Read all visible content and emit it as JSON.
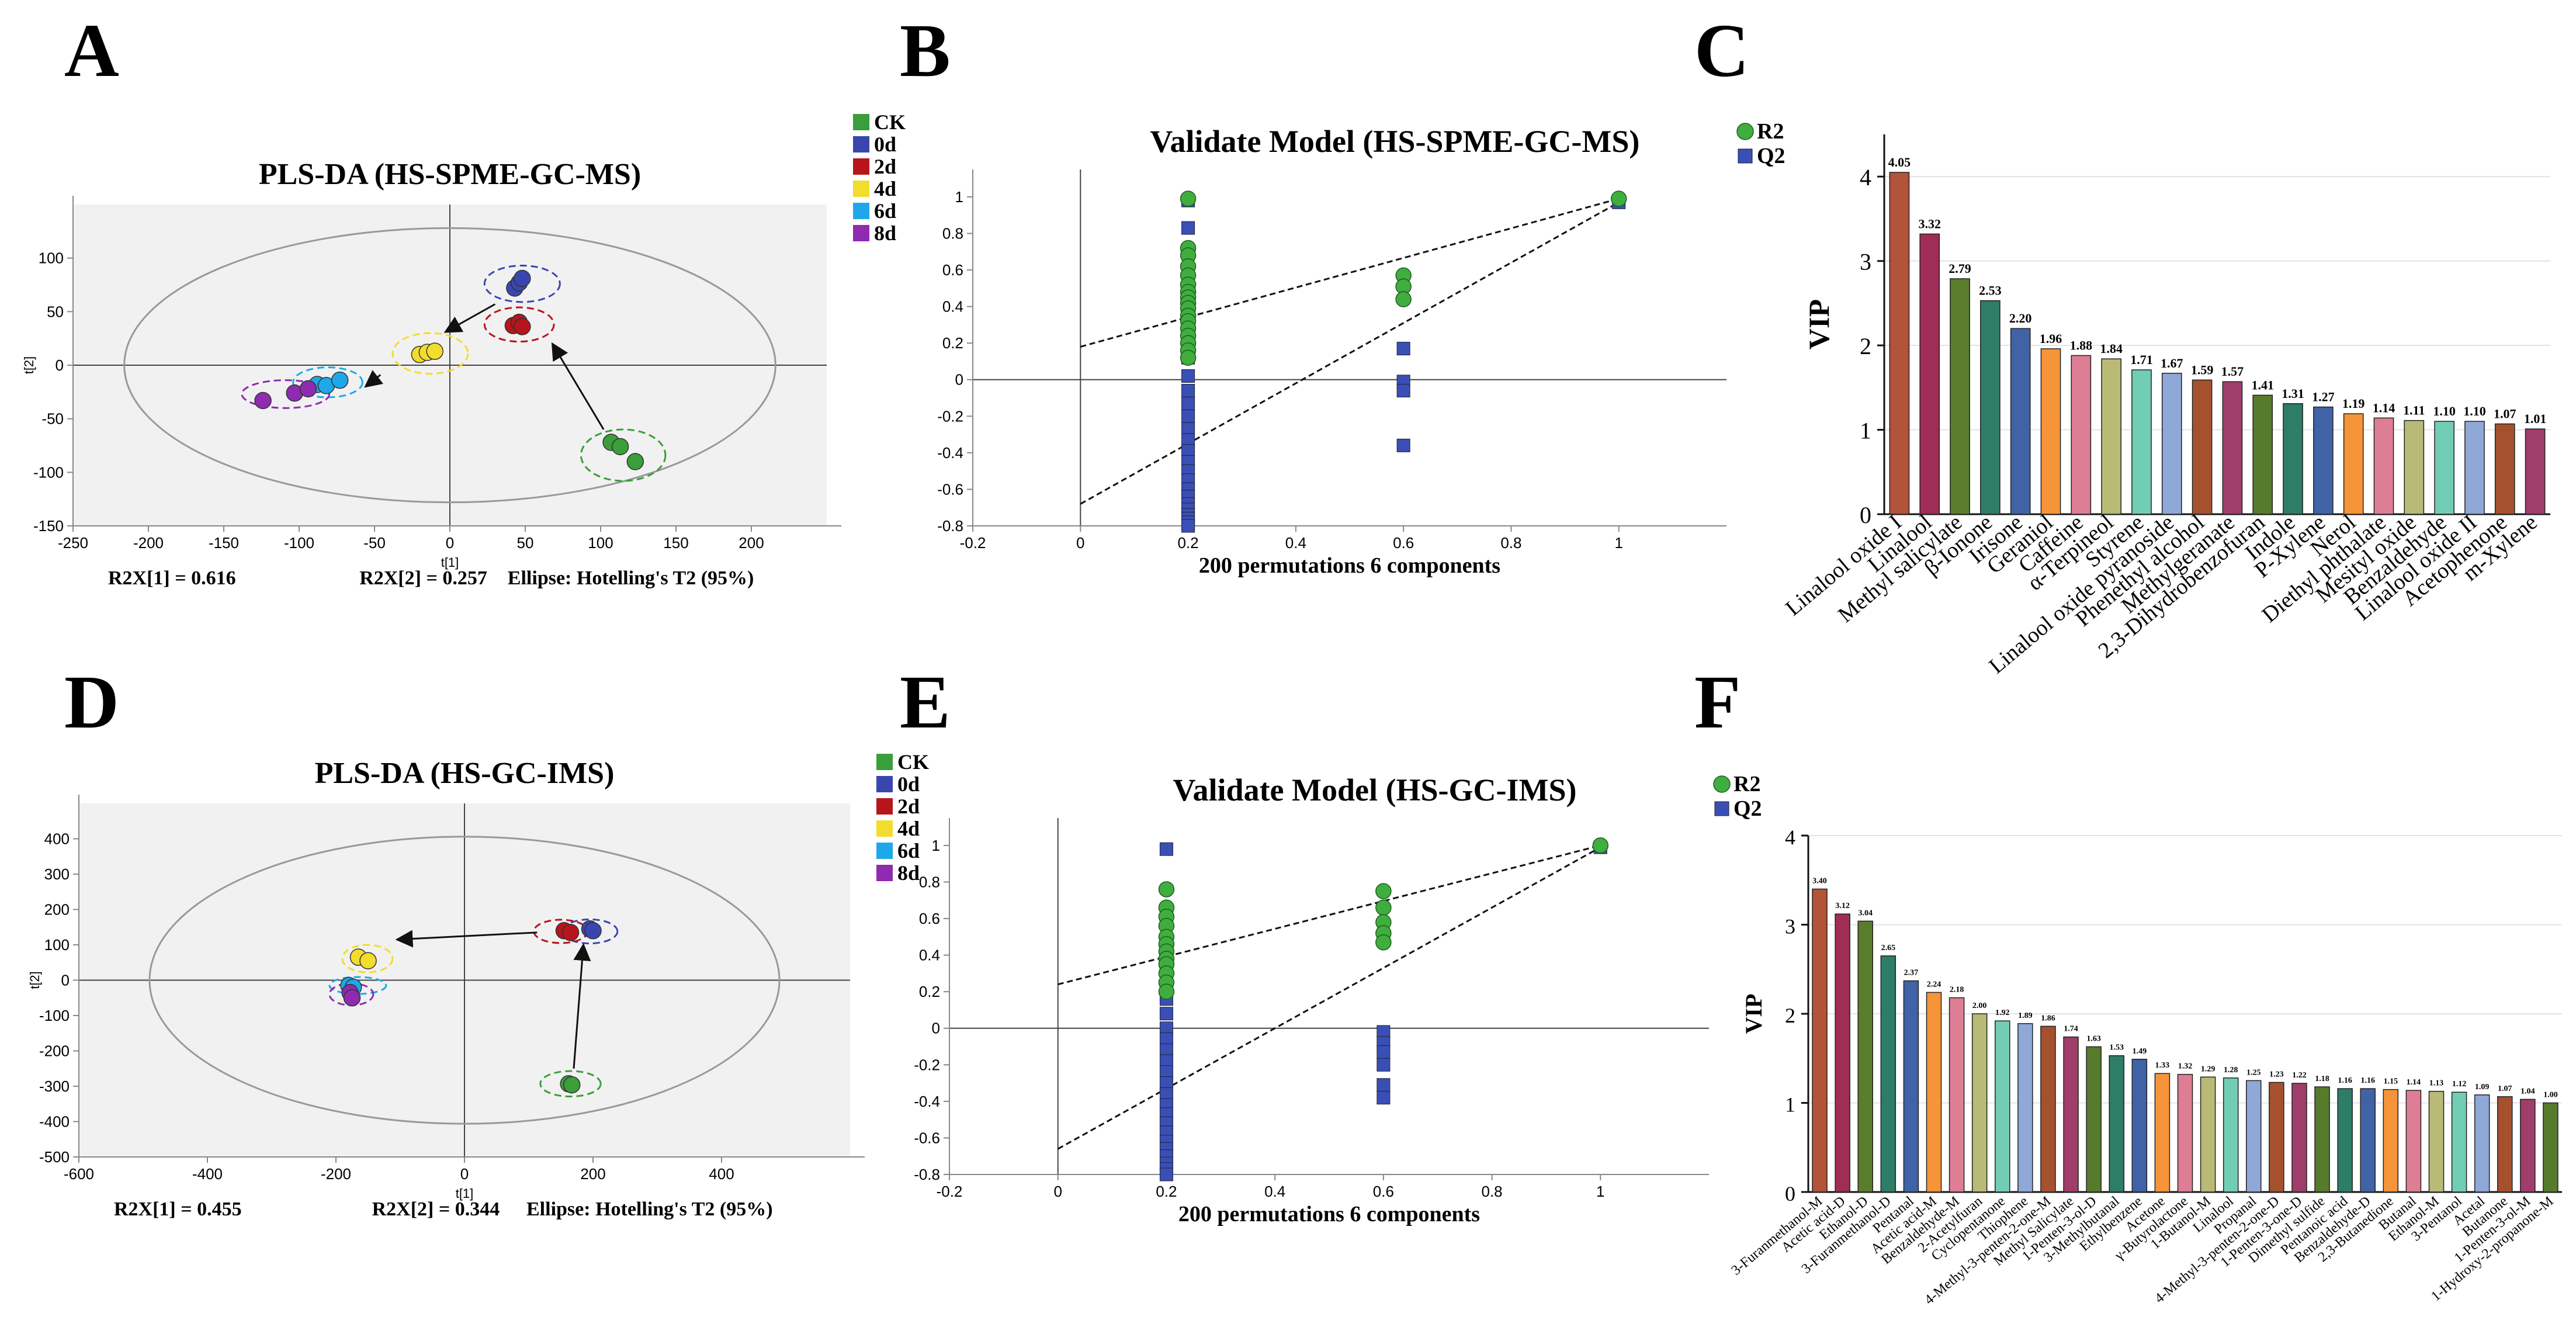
{
  "panel_letters": [
    "A",
    "B",
    "C",
    "D",
    "E",
    "F"
  ],
  "colors": {
    "CK": "#3a9e3a",
    "0d": "#3a46b0",
    "2d": "#b8141c",
    "4d": "#f2dc2c",
    "6d": "#1ea8ea",
    "8d": "#8e2bb0",
    "r2": "#3fae3f",
    "q2": "#3a4fb5",
    "grid_bg": "#f1f1f1",
    "axis": "#888888"
  },
  "chart_data": [
    {
      "id": "A",
      "type": "scatter",
      "title": "PLS-DA (HS-SPME-GC-MS)",
      "xlabel": "t[1]",
      "ylabel": "t[2]",
      "xlim": [
        -250,
        250
      ],
      "ylim": [
        -150,
        150
      ],
      "xticks": [
        -250,
        -200,
        -150,
        -100,
        -50,
        0,
        50,
        100,
        150,
        200
      ],
      "yticks": [
        -150,
        -100,
        -50,
        0,
        50,
        100
      ],
      "legend": [
        "CK",
        "0d",
        "2d",
        "4d",
        "6d",
        "8d"
      ],
      "series": [
        {
          "name": "CK",
          "points": [
            [
              107,
              -72
            ],
            [
              113,
              -76
            ],
            [
              123,
              -90
            ]
          ]
        },
        {
          "name": "0d",
          "points": [
            [
              43,
              72
            ],
            [
              46,
              77
            ],
            [
              48,
              81
            ]
          ]
        },
        {
          "name": "2d",
          "points": [
            [
              42,
              37
            ],
            [
              46,
              40
            ],
            [
              48,
              36
            ]
          ]
        },
        {
          "name": "4d",
          "points": [
            [
              -20,
              10
            ],
            [
              -15,
              12
            ],
            [
              -10,
              13
            ]
          ]
        },
        {
          "name": "6d",
          "points": [
            [
              -88,
              -18
            ],
            [
              -82,
              -19
            ],
            [
              -73,
              -14
            ]
          ]
        },
        {
          "name": "8d",
          "points": [
            [
              -124,
              -33
            ],
            [
              -103,
              -26
            ],
            [
              -94,
              -22
            ]
          ]
        }
      ],
      "ellipses": [
        {
          "cx": 115,
          "cy": -84,
          "rx": 28,
          "ry": 24,
          "group": "CK"
        },
        {
          "cx": 48,
          "cy": 76,
          "rx": 25,
          "ry": 17,
          "group": "0d"
        },
        {
          "cx": 46,
          "cy": 38,
          "rx": 23,
          "ry": 16,
          "group": "2d"
        },
        {
          "cx": -13,
          "cy": 11,
          "rx": 25,
          "ry": 19,
          "group": "4d"
        },
        {
          "cx": -81,
          "cy": -16,
          "rx": 23,
          "ry": 14,
          "group": "6d"
        },
        {
          "cx": -109,
          "cy": -27,
          "rx": 29,
          "ry": 13,
          "group": "8d"
        }
      ],
      "arrows": [
        [
          [
            102,
            -60
          ],
          [
            68,
            20
          ]
        ],
        [
          [
            30,
            57
          ],
          [
            -3,
            31
          ]
        ],
        [
          [
            -46,
            -9
          ],
          [
            -56,
            -20
          ]
        ]
      ],
      "hotelling": {
        "rx": 216,
        "ry": 128
      },
      "annotations": [
        "R2X[1] = 0.616",
        "R2X[2] = 0.257",
        "Ellipse: Hotelling's T2 (95%)"
      ]
    },
    {
      "id": "B",
      "type": "scatter",
      "title": "Validate Model (HS-SPME-GC-MS)",
      "xlabel": "200 permutations 6 components",
      "xlim": [
        -0.2,
        1.2
      ],
      "ylim": [
        -0.8,
        1.15
      ],
      "xticks": [
        -0.2,
        0,
        0.2,
        0.4,
        0.6,
        0.8,
        1
      ],
      "yticks": [
        -0.8,
        -0.6,
        -0.4,
        -0.2,
        0,
        0.2,
        0.4,
        0.6,
        0.8,
        1
      ],
      "legend": [
        "R2",
        "Q2"
      ],
      "series": [
        {
          "name": "R2",
          "x": [
            0.2,
            0.2,
            0.2,
            0.2,
            0.2,
            0.2,
            0.2,
            0.2,
            0.2,
            0.2,
            0.2,
            0.2,
            0.2,
            0.2,
            0.2,
            0.2,
            0.2,
            0.6,
            0.6,
            0.6,
            1.0
          ],
          "y": [
            0.99,
            0.72,
            0.68,
            0.62,
            0.57,
            0.52,
            0.48,
            0.45,
            0.42,
            0.39,
            0.35,
            0.32,
            0.28,
            0.24,
            0.2,
            0.16,
            0.12,
            0.57,
            0.51,
            0.44,
            0.99
          ]
        },
        {
          "name": "Q2",
          "x": [
            0.2,
            0.2,
            0.2,
            0.2,
            0.2,
            0.2,
            0.2,
            0.2,
            0.2,
            0.2,
            0.2,
            0.2,
            0.2,
            0.2,
            0.2,
            0.2,
            0.2,
            0.2,
            0.2,
            0.2,
            0.2,
            0.2,
            0.2,
            0.2,
            0.6,
            0.6,
            0.6,
            0.6,
            1.0
          ],
          "y": [
            0.98,
            0.83,
            0.69,
            0.38,
            0.22,
            0.12,
            0.02,
            -0.06,
            -0.13,
            -0.2,
            -0.27,
            -0.33,
            -0.39,
            -0.45,
            -0.5,
            -0.55,
            -0.6,
            -0.64,
            -0.68,
            -0.71,
            -0.74,
            -0.76,
            -0.78,
            -0.8,
            0.17,
            -0.01,
            -0.06,
            -0.36,
            0.97
          ]
        }
      ],
      "regression_lines": [
        {
          "name": "R2",
          "points": [
            [
              0,
              0.18
            ],
            [
              1,
              0.99
            ]
          ]
        },
        {
          "name": "Q2",
          "points": [
            [
              0,
              -0.68
            ],
            [
              1,
              0.97
            ]
          ]
        }
      ]
    },
    {
      "id": "C",
      "type": "bar",
      "ylabel": "VIP",
      "ylim": [
        0,
        4.5
      ],
      "yticks": [
        0,
        1,
        2,
        3,
        4
      ],
      "categories": [
        "Linalool oxide I",
        "Linalool",
        "Methyl salicylate",
        "β-Ionone",
        "Irisone",
        "Geraniol",
        "Caffeine",
        "α-Terpineol",
        "Styrene",
        "Linalool oxide pyranoside",
        "Phenethyl alcohol",
        "Methylgeranate",
        "2,3-Dihydrobenzofuran",
        "Indole",
        "P-Xylene",
        "Nerol",
        "Diethyl phthalate",
        "Mesityl oxide",
        "Benzaldehyde",
        "Linalool oxide II",
        "Acetophenone",
        "m-Xylene"
      ],
      "values": [
        4.05,
        3.32,
        2.79,
        2.53,
        2.2,
        1.96,
        1.88,
        1.84,
        1.71,
        1.67,
        1.59,
        1.57,
        1.41,
        1.31,
        1.27,
        1.19,
        1.14,
        1.11,
        1.1,
        1.1,
        1.07,
        1.01
      ],
      "labels": [
        "4.05",
        "3.32",
        "2.79",
        "2.53",
        "2.20",
        "1.96",
        "1.88",
        "1.84",
        "1.71",
        "1.67",
        "1.59",
        "1.57",
        "1.41",
        "1.31",
        "1.27",
        "1.19",
        "1.14",
        "1.11",
        "1.10",
        "1.10",
        "1.07",
        "1.01"
      ],
      "bar_colors": [
        "#b2533a",
        "#9f2d55",
        "#5a7d2c",
        "#2e7d66",
        "#3f63a6",
        "#f59438",
        "#de7e95",
        "#b8ba76",
        "#72cdb5",
        "#8fa8d8",
        "#a6512e",
        "#9f3e6a",
        "#567b2d",
        "#2e7d66",
        "#3f63a6",
        "#f59438",
        "#de7e95",
        "#b8ba76",
        "#72cdb5",
        "#8fa8d8",
        "#a6512e",
        "#9f3e6a"
      ]
    },
    {
      "id": "D",
      "type": "scatter",
      "title": "PLS-DA (HS-GC-IMS)",
      "xlabel": "t[1]",
      "ylabel": "t[2]",
      "xlim": [
        -600,
        600
      ],
      "ylim": [
        -500,
        500
      ],
      "xticks": [
        -600,
        -400,
        -200,
        0,
        200,
        400
      ],
      "yticks": [
        -500,
        -400,
        -300,
        -200,
        -100,
        0,
        100,
        200,
        300,
        400
      ],
      "legend": [
        "CK",
        "0d",
        "2d",
        "4d",
        "6d",
        "8d"
      ],
      "series": [
        {
          "name": "CK",
          "points": [
            [
              162,
              -293
            ],
            [
              167,
              -296
            ]
          ]
        },
        {
          "name": "0d",
          "points": [
            [
              195,
              145
            ],
            [
              200,
              140
            ]
          ]
        },
        {
          "name": "2d",
          "points": [
            [
              155,
              140
            ],
            [
              165,
              135
            ]
          ]
        },
        {
          "name": "4d",
          "points": [
            [
              -165,
              65
            ],
            [
              -150,
              55
            ]
          ]
        },
        {
          "name": "6d",
          "points": [
            [
              -180,
              -15
            ],
            [
              -173,
              -20
            ]
          ]
        },
        {
          "name": "8d",
          "points": [
            [
              -178,
              -35
            ],
            [
              -175,
              -50
            ]
          ]
        }
      ],
      "ellipses": [
        {
          "cx": 165,
          "cy": -293,
          "rx": 47,
          "ry": 36,
          "group": "CK"
        },
        {
          "cx": 195,
          "cy": 138,
          "rx": 43,
          "ry": 34,
          "group": "0d"
        },
        {
          "cx": 150,
          "cy": 138,
          "rx": 42,
          "ry": 33,
          "group": "2d"
        },
        {
          "cx": -151,
          "cy": 61,
          "rx": 39,
          "ry": 39,
          "group": "4d"
        },
        {
          "cx": -166,
          "cy": -15,
          "rx": 44,
          "ry": 24,
          "group": "6d"
        },
        {
          "cx": -176,
          "cy": -40,
          "rx": 34,
          "ry": 31,
          "group": "8d"
        }
      ],
      "arrows": [
        [
          [
            113,
            135
          ],
          [
            -105,
            115
          ]
        ],
        [
          [
            170,
            -250
          ],
          [
            185,
            100
          ]
        ]
      ],
      "hotelling": {
        "rx": 490,
        "ry": 406
      },
      "annotations": [
        "R2X[1] = 0.455",
        "R2X[2] = 0.344",
        "Ellipse: Hotelling's T2 (95%)"
      ]
    },
    {
      "id": "E",
      "type": "scatter",
      "title": "Validate Model (HS-GC-IMS)",
      "xlabel": "200 permutations 6 components",
      "xlim": [
        -0.2,
        1.2
      ],
      "ylim": [
        -0.8,
        1.15
      ],
      "xticks": [
        -0.2,
        0,
        0.2,
        0.4,
        0.6,
        0.8,
        1
      ],
      "yticks": [
        -0.8,
        -0.6,
        -0.4,
        -0.2,
        0,
        0.2,
        0.4,
        0.6,
        0.8,
        1
      ],
      "legend": [
        "R2",
        "Q2"
      ],
      "series": [
        {
          "name": "R2",
          "x": [
            0.2,
            0.2,
            0.2,
            0.2,
            0.2,
            0.2,
            0.2,
            0.2,
            0.2,
            0.2,
            0.2,
            0.2,
            0.6,
            0.6,
            0.6,
            0.6,
            0.6,
            1.0
          ],
          "y": [
            0.76,
            0.66,
            0.61,
            0.56,
            0.5,
            0.46,
            0.42,
            0.38,
            0.35,
            0.3,
            0.25,
            0.2,
            0.75,
            0.66,
            0.58,
            0.52,
            0.47,
            1.0
          ]
        },
        {
          "name": "Q2",
          "x": [
            0.2,
            0.2,
            0.2,
            0.2,
            0.2,
            0.2,
            0.2,
            0.2,
            0.2,
            0.2,
            0.2,
            0.2,
            0.2,
            0.2,
            0.2,
            0.2,
            0.2,
            0.2,
            0.2,
            0.2,
            0.2,
            0.2,
            0.2,
            0.2,
            0.6,
            0.6,
            0.6,
            0.6,
            0.6,
            0.6,
            1.0
          ],
          "y": [
            0.98,
            0.58,
            0.46,
            0.34,
            0.24,
            0.16,
            0.08,
            0.0,
            -0.06,
            -0.12,
            -0.18,
            -0.24,
            -0.3,
            -0.36,
            -0.42,
            -0.47,
            -0.52,
            -0.57,
            -0.62,
            -0.66,
            -0.7,
            -0.74,
            -0.77,
            -0.8,
            -0.02,
            -0.08,
            -0.13,
            -0.2,
            -0.31,
            -0.38,
            0.99
          ]
        }
      ],
      "regression_lines": [
        {
          "name": "R2",
          "points": [
            [
              0,
              0.24
            ],
            [
              1,
              1.0
            ]
          ]
        },
        {
          "name": "Q2",
          "points": [
            [
              0,
              -0.66
            ],
            [
              1,
              0.99
            ]
          ]
        }
      ]
    },
    {
      "id": "F",
      "type": "bar",
      "ylabel": "VIP",
      "ylim": [
        0,
        4
      ],
      "yticks": [
        0,
        1,
        2,
        3,
        4
      ],
      "categories": [
        "3-Furanmethanol-M",
        "Acetic acid-D",
        "Ethanol-D",
        "3-Furanmethanol-D",
        "Pentanal",
        "Acetic acid-M",
        "Benzaldehyde-M",
        "2-Acetylfuran",
        "Cyclopentanone",
        "Thiophene",
        "4-Methyl-3-penten-2-one-M",
        "Methyl Salicylate",
        "1-Penten-3-ol-D",
        "3-Methylbutanal",
        "Ethylbenzene",
        "Acetone",
        "γ-Butyrolactone",
        "1-Butanol-M",
        "Linalool",
        "Propanal",
        "4-Methyl-3-penten-2-one-D",
        "1-Penten-3-one-D",
        "Dimethyl sulfide",
        "Pentanoic acid",
        "Benzaldehyde-D",
        "2,3-Butanedione",
        "Butanal",
        "Ethanol-M",
        "3-Pentanol",
        "Acetal",
        "Butanone",
        "1-Penten-3-ol-M",
        "1-Hydroxy-2-propanone-M"
      ],
      "values": [
        3.4,
        3.12,
        3.04,
        2.65,
        2.37,
        2.24,
        2.18,
        2.0,
        1.92,
        1.89,
        1.86,
        1.74,
        1.63,
        1.53,
        1.49,
        1.33,
        1.32,
        1.29,
        1.28,
        1.25,
        1.23,
        1.22,
        1.18,
        1.16,
        1.16,
        1.15,
        1.14,
        1.13,
        1.12,
        1.09,
        1.07,
        1.04,
        1.0
      ],
      "labels": [
        "3.40",
        "3.12",
        "3.04",
        "2.65",
        "2.37",
        "2.24",
        "2.18",
        "2.00",
        "1.92",
        "1.89",
        "1.86",
        "1.74",
        "1.63",
        "1.53",
        "1.49",
        "1.33",
        "1.32",
        "1.29",
        "1.28",
        "1.25",
        "1.23",
        "1.22",
        "1.18",
        "1.16",
        "1.16",
        "1.15",
        "1.14",
        "1.13",
        "1.12",
        "1.09",
        "1.07",
        "1.04",
        "1.00"
      ],
      "bar_colors": [
        "#b2533a",
        "#9f2d55",
        "#5a7d2c",
        "#2e7d66",
        "#3f63a6",
        "#f59438",
        "#de7e95",
        "#b8ba76",
        "#72cdb5",
        "#8fa8d8",
        "#a6512e",
        "#9f3e6a",
        "#567b2d",
        "#2e7d66",
        "#3f63a6",
        "#f59438",
        "#de7e95",
        "#b8ba76",
        "#72cdb5",
        "#8fa8d8",
        "#a6512e",
        "#9f3e6a",
        "#567b2d",
        "#2e7d66",
        "#3f63a6",
        "#f59438",
        "#de7e95",
        "#b8ba76",
        "#72cdb5",
        "#8fa8d8",
        "#a6512e",
        "#9f3e6a",
        "#567b2d"
      ]
    }
  ]
}
